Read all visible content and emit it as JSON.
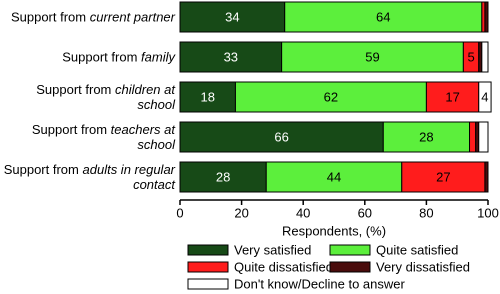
{
  "chart_data": {
    "type": "stacked_barh",
    "xlabel": "Respondents, (%)",
    "categories": [
      [
        "Support from",
        "current partner"
      ],
      [
        "Support from",
        "family"
      ],
      [
        "Support from",
        "children at school"
      ],
      [
        "Support from",
        "teachers at school"
      ],
      [
        "Support from",
        "adults in regular contact"
      ]
    ],
    "series": [
      {
        "name": "Very satisfied",
        "color": "#174a17",
        "label_color": "#ffffff",
        "values": [
          34,
          33,
          18,
          66,
          28
        ]
      },
      {
        "name": "Quite satisfied",
        "color": "#5cef3c",
        "label_color": "#000000",
        "values": [
          64,
          59,
          62,
          28,
          44
        ]
      },
      {
        "name": "Quite dissatisfied",
        "color": "#ff1c1c",
        "label_color": "#000000",
        "values": [
          1,
          5,
          17,
          2,
          27
        ]
      },
      {
        "name": "Very dissatisfied",
        "color": "#4a0c0c",
        "label_color": "#ffffff",
        "values": [
          1,
          1,
          0,
          1,
          1
        ]
      },
      {
        "name": "Don't know/Decline to answer",
        "color": "#ffffff",
        "label_color": "#000000",
        "values": [
          0,
          2,
          4,
          3,
          0
        ]
      }
    ],
    "label_min": 4,
    "xlim": [
      0,
      100
    ],
    "xticks": [
      0,
      20,
      40,
      60,
      80,
      100
    ]
  }
}
